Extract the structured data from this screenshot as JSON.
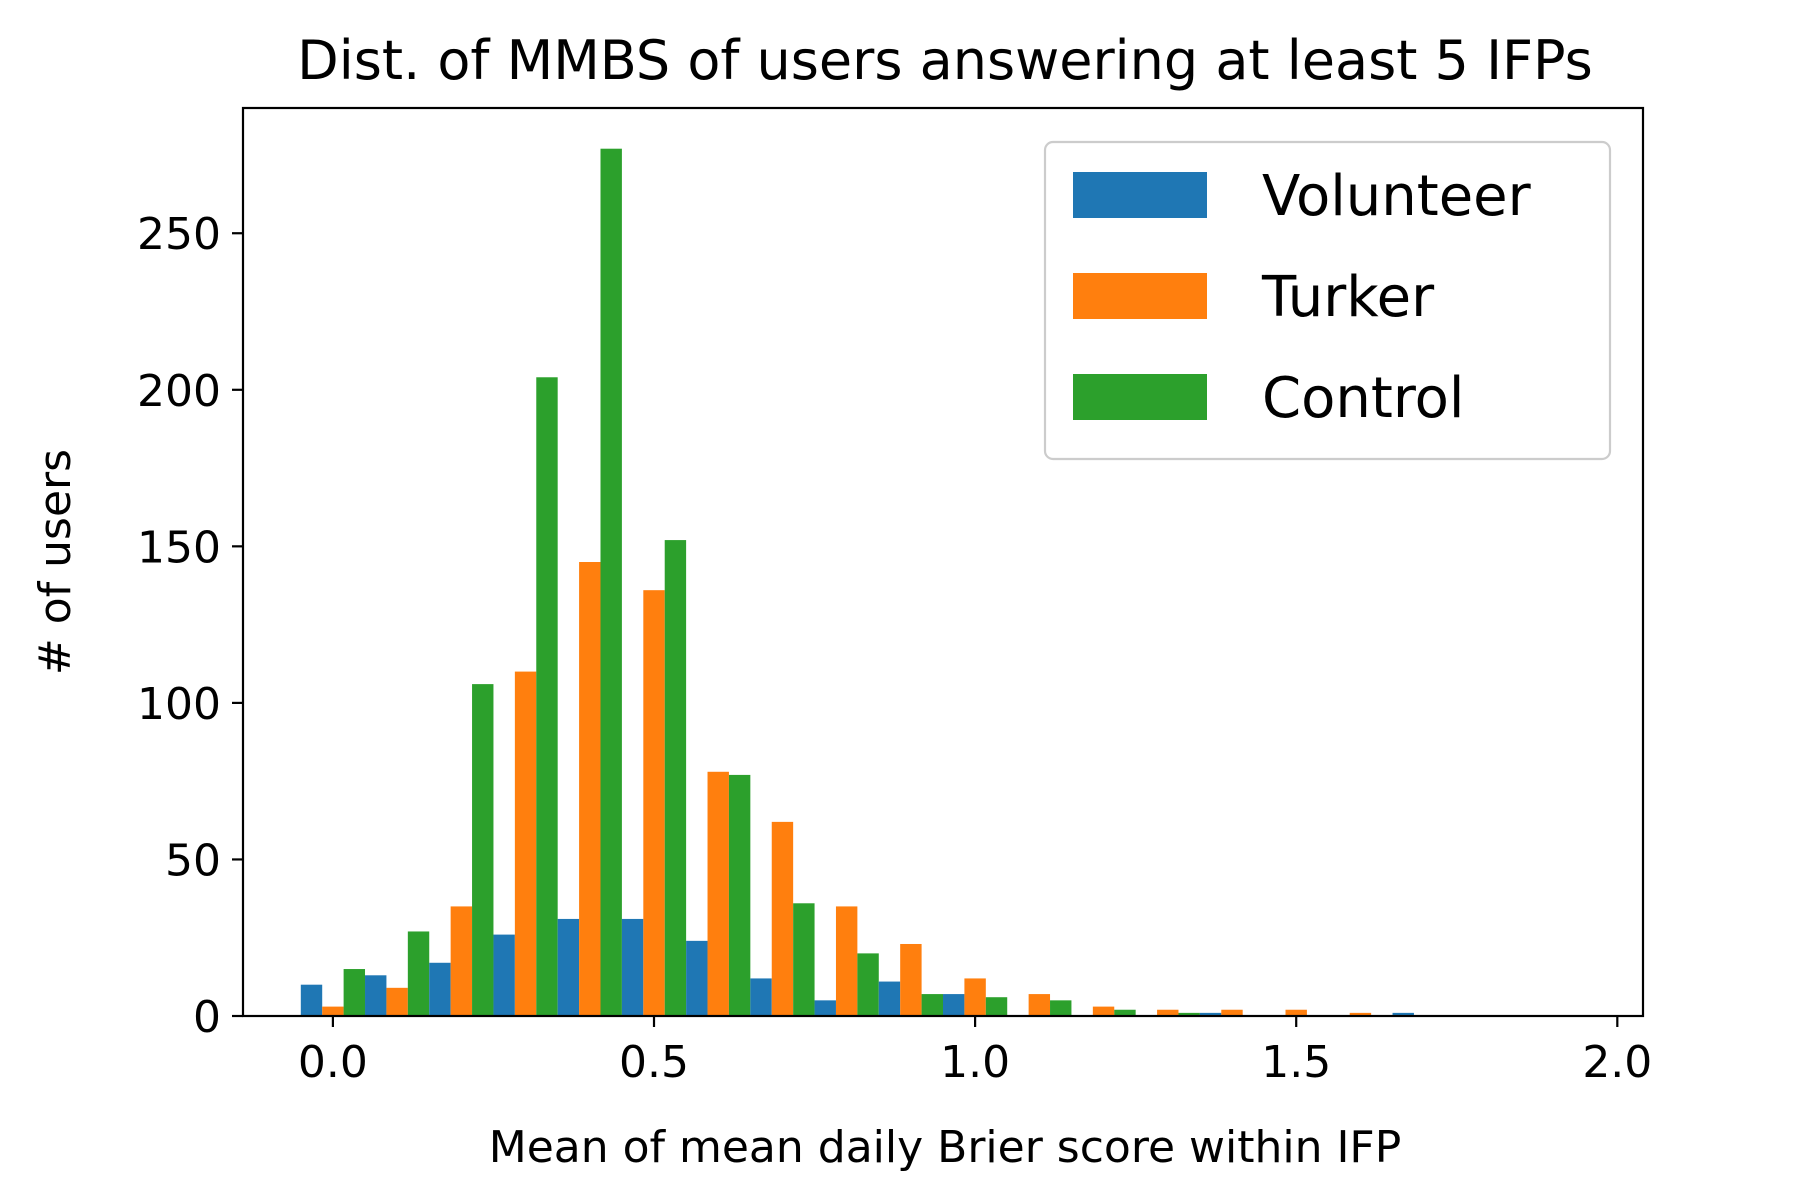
{
  "chart_data": {
    "type": "bar",
    "title": "Dist. of MMBS of users answering at least 5 IFPs",
    "xlabel": "Mean of mean daily Brier score within IFP",
    "ylabel": "# of users",
    "xlim": [
      -0.14,
      2.04
    ],
    "ylim": [
      0,
      290
    ],
    "xticks": [
      0.0,
      0.5,
      1.0,
      1.5,
      2.0
    ],
    "xtick_labels": [
      "0.0",
      "0.5",
      "1.0",
      "1.5",
      "2.0"
    ],
    "yticks": [
      0,
      50,
      100,
      150,
      200,
      250
    ],
    "ytick_labels": [
      "0",
      "50",
      "100",
      "150",
      "200",
      "250"
    ],
    "bin_width": 0.1,
    "bin_starts": [
      -0.05,
      0.05,
      0.15,
      0.25,
      0.35,
      0.45,
      0.55,
      0.65,
      0.75,
      0.85,
      0.95,
      1.05,
      1.15,
      1.25,
      1.35,
      1.45,
      1.55,
      1.65,
      1.75,
      1.85
    ],
    "grid": false,
    "legend_position": "top-right",
    "series": [
      {
        "name": "Volunteer",
        "color": "#1f77b4",
        "values": [
          10,
          13,
          17,
          26,
          31,
          31,
          24,
          12,
          5,
          11,
          7,
          0,
          0,
          0,
          1,
          0,
          0,
          1,
          0,
          0
        ]
      },
      {
        "name": "Turker",
        "color": "#ff7f0e",
        "values": [
          3,
          9,
          35,
          110,
          145,
          136,
          78,
          62,
          35,
          23,
          12,
          7,
          3,
          2,
          2,
          2,
          1,
          0,
          0,
          0
        ]
      },
      {
        "name": "Control",
        "color": "#2ca02c",
        "values": [
          15,
          27,
          106,
          204,
          277,
          152,
          77,
          36,
          20,
          7,
          6,
          5,
          2,
          1,
          0,
          0,
          0,
          0,
          0,
          0
        ]
      }
    ]
  }
}
